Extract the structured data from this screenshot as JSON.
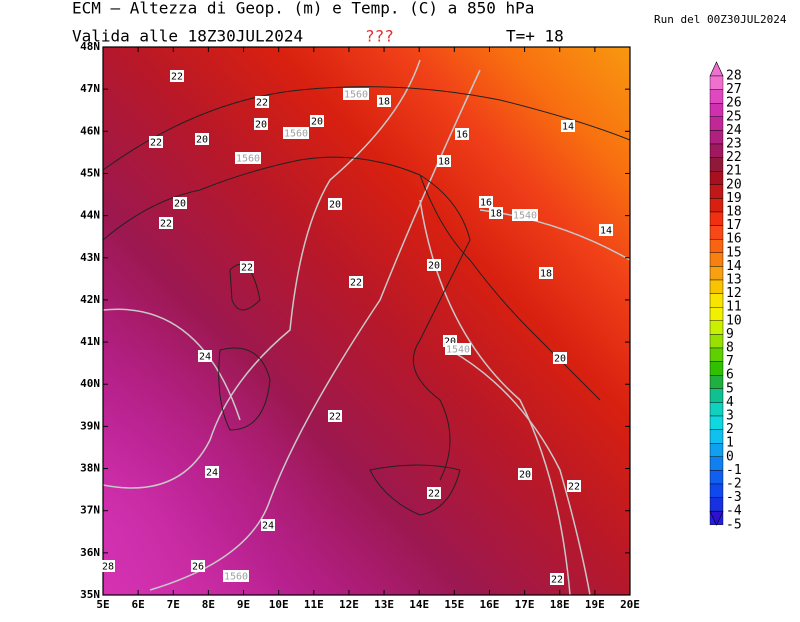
{
  "header": {
    "title": "ECM — Altezza di Geop. (m) e Temp. (C) a 850 hPa",
    "valid": "Valida alle 18Z30JUL2024",
    "warning": "???",
    "step": "T=+ 18",
    "run": "Run del 00Z30JUL2024"
  },
  "axes": {
    "lat_labels": [
      "48N",
      "47N",
      "46N",
      "45N",
      "44N",
      "43N",
      "42N",
      "41N",
      "40N",
      "39N",
      "38N",
      "37N",
      "36N",
      "35N"
    ],
    "lon_labels": [
      "5E",
      "6E",
      "7E",
      "8E",
      "9E",
      "10E",
      "11E",
      "12E",
      "13E",
      "14E",
      "15E",
      "16E",
      "17E",
      "18E",
      "19E",
      "20E"
    ]
  },
  "colorbar": {
    "levels": [
      28,
      27,
      26,
      25,
      24,
      23,
      22,
      21,
      20,
      19,
      18,
      17,
      16,
      15,
      14,
      13,
      12,
      11,
      10,
      9,
      8,
      7,
      6,
      5,
      4,
      3,
      2,
      1,
      0,
      -1,
      -2,
      -3,
      -4,
      -5
    ],
    "colors": [
      "#f070d0",
      "#e048c0",
      "#d030b0",
      "#c02898",
      "#b02080",
      "#a01860",
      "#901838",
      "#a81020",
      "#c01818",
      "#d82010",
      "#f03010",
      "#f84818",
      "#f86410",
      "#f88010",
      "#f8a010",
      "#f8c400",
      "#f8e400",
      "#f0f000",
      "#c8f000",
      "#98e000",
      "#60d000",
      "#30c000",
      "#20b040",
      "#10c090",
      "#10d0c0",
      "#10d8e0",
      "#10c0f0",
      "#10a0f0",
      "#1080f0",
      "#1060f0",
      "#1048f0",
      "#1830e0",
      "#2020e0",
      "#3010d0"
    ]
  },
  "contour_labels": [
    "22",
    "1560",
    "18",
    "22",
    "20",
    "20",
    "1560",
    "16",
    "14",
    "22",
    "20",
    "1560",
    "18",
    "20",
    "20",
    "16",
    "18",
    "1540",
    "22",
    "14",
    "22",
    "20",
    "18",
    "22",
    "20",
    "1540",
    "24",
    "20",
    "22",
    "24",
    "20",
    "22",
    "22",
    "24",
    "28",
    "26",
    "1560",
    "22"
  ]
}
